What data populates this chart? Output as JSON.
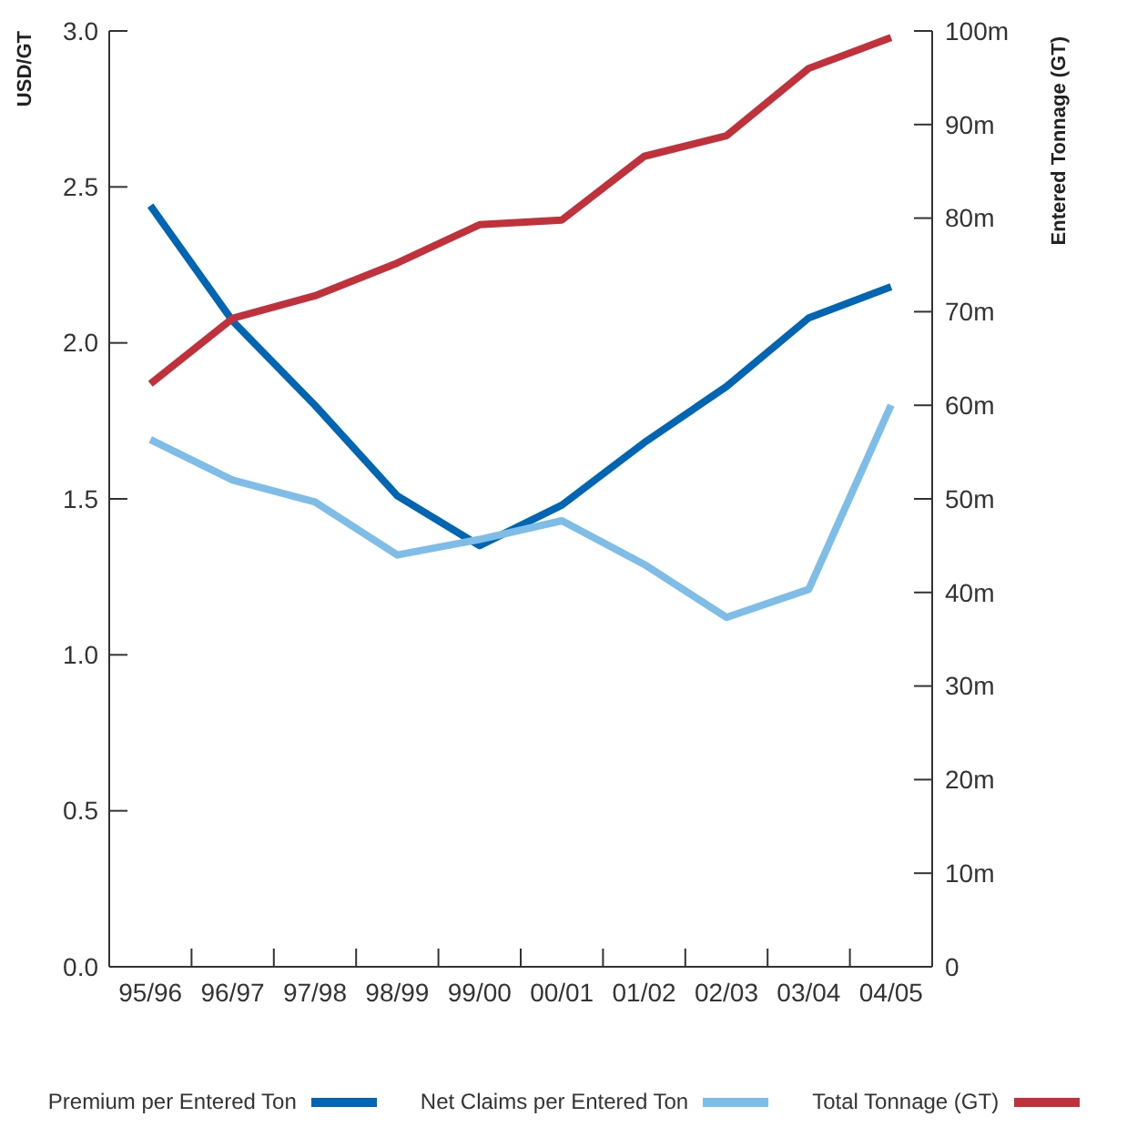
{
  "chart_data": {
    "type": "line",
    "categories": [
      "95/96",
      "96/97",
      "97/98",
      "98/99",
      "99/00",
      "00/01",
      "01/02",
      "02/03",
      "03/04",
      "04/05"
    ],
    "series": [
      {
        "name": "Premium per Entered Ton",
        "color": "#0066b3",
        "values": [
          2.44,
          2.07,
          1.8,
          1.51,
          1.35,
          1.48,
          1.68,
          1.86,
          2.08,
          2.18
        ]
      },
      {
        "name": "Net Claims per Entered Ton",
        "color": "#7dbde8",
        "values": [
          1.69,
          1.56,
          1.49,
          1.32,
          1.37,
          1.43,
          1.29,
          1.12,
          1.21,
          1.8
        ]
      },
      {
        "name": "Total Tonnage (GT)",
        "color": "#c0313c",
        "axis": "y2",
        "values": [
          62.3,
          69.3,
          71.7,
          75.2,
          79.3,
          79.8,
          86.6,
          88.8,
          96.0,
          99.3
        ]
      }
    ],
    "ylabel": "USD/GT",
    "y2label": "Entered Tonnage (GT)",
    "ylim": [
      0,
      3
    ],
    "yticks": [
      {
        "value": 0,
        "label": "0.0"
      },
      0.5,
      {
        "value": 1,
        "label": "1.0"
      },
      1.5,
      {
        "value": 2,
        "label": "2.0"
      },
      2.5,
      {
        "value": 3,
        "label": "3.0"
      }
    ],
    "y2lim": [
      0,
      100
    ],
    "y2ticks": [
      0,
      {
        "value": 10,
        "label": "10m"
      },
      {
        "value": 20,
        "label": "20m"
      },
      {
        "value": 30,
        "label": "30m"
      },
      {
        "value": 40,
        "label": "40m"
      },
      {
        "value": 50,
        "label": "50m"
      },
      {
        "value": 60,
        "label": "60m"
      },
      {
        "value": 70,
        "label": "70m"
      },
      {
        "value": 80,
        "label": "80m"
      },
      {
        "value": 90,
        "label": "90m"
      },
      {
        "value": 100,
        "label": "100m"
      }
    ],
    "legend": "bottom",
    "line_style": "solid"
  }
}
